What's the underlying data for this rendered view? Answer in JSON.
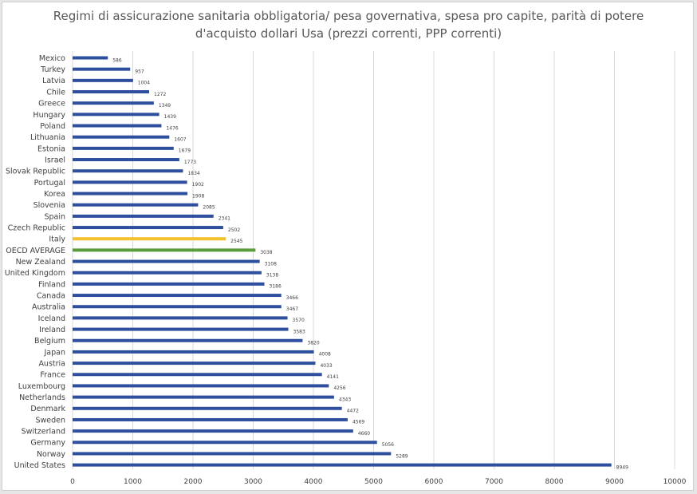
{
  "chart_data": {
    "type": "bar",
    "orientation": "horizontal",
    "title_line1": "Regimi di assicurazione sanitaria obbligatoria/ pesa governativa, spesa pro capite, parità di potere",
    "title_line2": "d'acquisto dollari Usa (prezzi correnti, PPP correnti)",
    "xlim": [
      0,
      10000
    ],
    "xticks": [
      "0",
      "1000",
      "2000",
      "3000",
      "4000",
      "5000",
      "6000",
      "7000",
      "8000",
      "9000",
      "10000"
    ],
    "grid": "vertical",
    "colors": {
      "default": "#2e4f9e",
      "highlight": "#f2c12e",
      "average": "#5a9e3a"
    },
    "categories": [
      "Mexico",
      "Turkey",
      "Latvia",
      "Chile",
      "Greece",
      "Hungary",
      "Poland",
      "Lithuania",
      "Estonia",
      "Israel",
      "Slovak Republic",
      "Portugal",
      "Korea",
      "Slovenia",
      "Spain",
      "Czech Republic",
      "Italy",
      "OECD AVERAGE",
      "New Zealand",
      "United Kingdom",
      "Finland",
      "Canada",
      "Australia",
      "Iceland",
      "Ireland",
      "Belgium",
      "Japan",
      "Austria",
      "France",
      "Luxembourg",
      "Netherlands",
      "Denmark",
      "Sweden",
      "Switzerland",
      "Germany",
      "Norway",
      "United States"
    ],
    "values": [
      586,
      957,
      1004,
      1272,
      1349,
      1439,
      1476,
      1607,
      1679,
      1773,
      1834,
      1902,
      1908,
      2085,
      2341,
      2502,
      2545,
      3038,
      3108,
      3138,
      3186,
      3466,
      3467,
      3570,
      3583,
      3820,
      4008,
      4033,
      4141,
      4256,
      4343,
      4472,
      4569,
      4660,
      5056,
      5289,
      8949
    ],
    "value_labels": [
      "586",
      "957",
      "1004",
      "1272",
      "1349",
      "1439",
      "1476",
      "1607",
      "1679",
      "1773",
      "1834",
      "1902",
      "1908",
      "2085",
      "2341",
      "2502",
      "2545",
      "3038",
      "3108",
      "3138",
      "3186",
      "3466",
      "3467",
      "3570",
      "3583",
      "3820",
      "4008",
      "4033",
      "4141",
      "4256",
      "4343",
      "4472",
      "4569",
      "4660",
      "5056",
      "5289",
      "8949"
    ],
    "highlight": {
      "Italy": "highlight",
      "OECD AVERAGE": "average"
    }
  }
}
